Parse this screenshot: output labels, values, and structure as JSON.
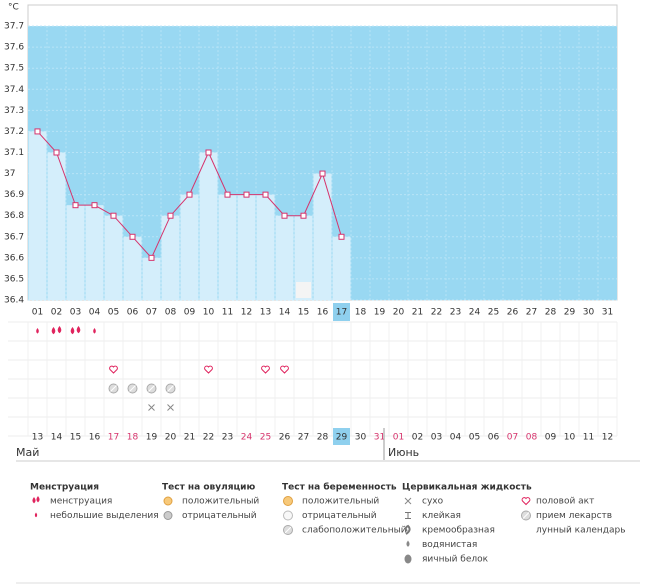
{
  "chart_data": {
    "type": "line",
    "y_label": "°C",
    "ylim": [
      36.4,
      37.8
    ],
    "yticks": [
      36.4,
      36.5,
      36.6,
      36.7,
      36.8,
      36.9,
      37,
      37.1,
      37.2,
      37.3,
      37.4,
      37.5,
      37.6,
      37.7
    ],
    "categories": [
      "01",
      "02",
      "03",
      "04",
      "05",
      "06",
      "07",
      "08",
      "09",
      "10",
      "11",
      "12",
      "13",
      "14",
      "15",
      "16",
      "17",
      "18",
      "19",
      "20",
      "21",
      "22",
      "23",
      "24",
      "25",
      "26",
      "27",
      "28",
      "29",
      "30",
      "31"
    ],
    "values": [
      37.2,
      37.1,
      36.85,
      36.85,
      36.8,
      36.7,
      36.6,
      36.8,
      36.9,
      37.1,
      36.9,
      36.9,
      36.9,
      36.8,
      36.8,
      37.0,
      36.7,
      null,
      null,
      null,
      null,
      null,
      null,
      null,
      null,
      null,
      null,
      null,
      null,
      null,
      null
    ],
    "color": "#d6336c",
    "bar_color": "#d4eefb",
    "background_color": "#99d8f2",
    "today_index": 16,
    "dates": [
      {
        "text": "13",
        "red": false
      },
      {
        "text": "14",
        "red": false
      },
      {
        "text": "15",
        "red": false
      },
      {
        "text": "16",
        "red": false
      },
      {
        "text": "17",
        "red": true
      },
      {
        "text": "18",
        "red": true
      },
      {
        "text": "19",
        "red": false
      },
      {
        "text": "20",
        "red": false
      },
      {
        "text": "21",
        "red": false
      },
      {
        "text": "22",
        "red": false
      },
      {
        "text": "23",
        "red": false
      },
      {
        "text": "24",
        "red": true
      },
      {
        "text": "25",
        "red": true
      },
      {
        "text": "26",
        "red": false
      },
      {
        "text": "27",
        "red": false
      },
      {
        "text": "28",
        "red": false
      },
      {
        "text": "29",
        "red": false
      },
      {
        "text": "30",
        "red": false
      },
      {
        "text": "31",
        "red": true
      },
      {
        "text": "01",
        "red": true
      },
      {
        "text": "02",
        "red": false
      },
      {
        "text": "03",
        "red": false
      },
      {
        "text": "04",
        "red": false
      },
      {
        "text": "05",
        "red": false
      },
      {
        "text": "06",
        "red": false
      },
      {
        "text": "07",
        "red": true
      },
      {
        "text": "08",
        "red": true
      },
      {
        "text": "09",
        "red": false
      },
      {
        "text": "10",
        "red": false
      },
      {
        "text": "11",
        "red": false
      },
      {
        "text": "12",
        "red": false
      }
    ],
    "months": [
      {
        "text": "Май",
        "start": 0
      },
      {
        "text": "Июнь",
        "start": 19
      }
    ],
    "menstruation_days": [
      0,
      1,
      2,
      3
    ],
    "menstruation_heavy": [
      false,
      true,
      true,
      false
    ],
    "sex_days": [
      4,
      9,
      12,
      13
    ],
    "medication_days": [
      4,
      5,
      6,
      7
    ],
    "dry_days": [
      6,
      7
    ],
    "lunar_days": [
      14
    ],
    "legend": [
      {
        "title": "Менструация",
        "items": [
          "менструация",
          "небольшие выделения"
        ]
      },
      {
        "title": "Тест на овуляцию",
        "items": [
          "положительный",
          "отрицательный"
        ]
      },
      {
        "title": "Тест на беременность",
        "items": [
          "положительный",
          "отрицательный",
          "слабоположительный"
        ]
      },
      {
        "title": "Цервикальная жидкость",
        "items": [
          "сухо",
          "клейкая",
          "кремообразная",
          "водянистая",
          "яичный белок"
        ]
      }
    ],
    "legend_extra": [
      "половой акт",
      "прием лекарств",
      "лунный календарь"
    ]
  }
}
